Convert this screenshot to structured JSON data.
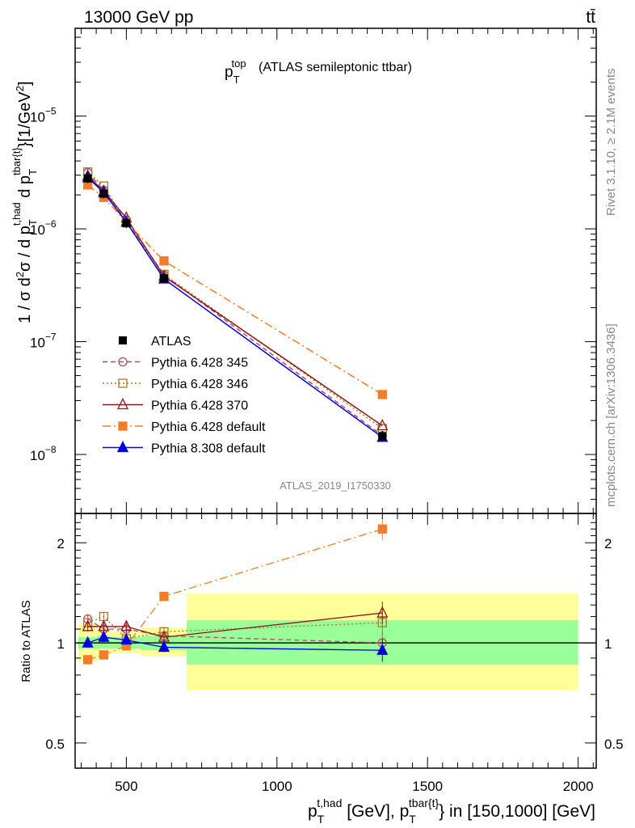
{
  "header": {
    "left": "13000 GeV pp",
    "right": "tt̄"
  },
  "side_text": {
    "top": "Rivet 3.1.10, ≥ 2.1M events",
    "bottom": "mcplots.cern.ch [arXiv:1306.3436]"
  },
  "chart_data": {
    "type": "line",
    "title": "(ATLAS semileptonic ttbar)",
    "title_symbol": {
      "base": "p",
      "sub": "T",
      "sup": "top"
    },
    "watermark": "ATLAS_2019_I1750330",
    "upper": {
      "ylabel": "1 / σ d²σ / d p_T^{t,had} d p_T^{tbar{t}} [1/GeV²]",
      "yscale": "log",
      "ylim": [
        3e-09,
        6e-05
      ],
      "yticks": [
        {
          "value": 1e-08,
          "mant": "10",
          "exp": "−8"
        },
        {
          "value": 1e-07,
          "mant": "10",
          "exp": "−7"
        },
        {
          "value": 1e-06,
          "mant": "10",
          "exp": "−6"
        },
        {
          "value": 1e-05,
          "mant": "10",
          "exp": "−5"
        }
      ]
    },
    "lower": {
      "ylabel": "Ratio to ATLAS",
      "yscale": "log",
      "ylim": [
        0.42,
        2.45
      ],
      "yticks": [
        {
          "value": 0.5,
          "label": "0.5"
        },
        {
          "value": 1,
          "label": "1"
        },
        {
          "value": 2,
          "label": "2"
        }
      ],
      "bands": [
        {
          "x": [
            340,
            405
          ],
          "inner": [
            0.96,
            1.04
          ],
          "outer": [
            0.88,
            1.14
          ]
        },
        {
          "x": [
            405,
            445
          ],
          "inner": [
            0.96,
            1.05
          ],
          "outer": [
            0.9,
            1.11
          ]
        },
        {
          "x": [
            445,
            550
          ],
          "inner": [
            0.96,
            1.04
          ],
          "outer": [
            0.93,
            1.08
          ]
        },
        {
          "x": [
            550,
            700
          ],
          "inner": [
            0.95,
            1.05
          ],
          "outer": [
            0.91,
            1.11
          ]
        },
        {
          "x": [
            700,
            2000
          ],
          "inner": [
            0.86,
            1.17
          ],
          "outer": [
            0.72,
            1.41
          ]
        }
      ]
    },
    "xlim": [
      330,
      2060
    ],
    "xlabel": "p_T^{t,had} [GeV], p_T^{tbar{t}} in [150,1000] [GeV]",
    "xticks": [
      {
        "value": 500,
        "label": "500"
      },
      {
        "value": 1000,
        "label": "1000"
      },
      {
        "value": 1500,
        "label": "1500"
      },
      {
        "value": 2000,
        "label": "2000"
      }
    ],
    "x": [
      372,
      425,
      500,
      625,
      1350
    ],
    "reference": {
      "name": "ATLAS",
      "values": [
        2.8e-06,
        2.05e-06,
        1.12e-06,
        3.65e-07,
        1.45e-08
      ]
    },
    "series": [
      {
        "name": "Pythia 6.428 345",
        "color": "#b44b5a",
        "dash": "6,4",
        "marker": "circle-open",
        "values": [
          3.15e-06,
          2.2e-06,
          1.2e-06,
          3.9e-07,
          1.47e-08
        ],
        "ratio": [
          1.18,
          1.1,
          1.1,
          1.05,
          1.0
        ]
      },
      {
        "name": "Pythia 6.428 346",
        "color": "#a8782d",
        "dash": "2,3",
        "marker": "square-open",
        "values": [
          3.2e-06,
          2.4e-06,
          1.15e-06,
          3.95e-07,
          1.7e-08
        ],
        "ratio": [
          1.15,
          1.2,
          1.03,
          1.08,
          1.15
        ]
      },
      {
        "name": "Pythia 6.428 370",
        "color": "#8b1a1a",
        "dash": "",
        "marker": "triangle-open",
        "values": [
          2.95e-06,
          2.15e-06,
          1.25e-06,
          3.8e-07,
          1.8e-08
        ],
        "ratio": [
          1.12,
          1.12,
          1.12,
          1.04,
          1.23
        ]
      },
      {
        "name": "Pythia 6.428 default",
        "color": "#f47b2a",
        "dash": "10,4,2,4",
        "marker": "square-filled",
        "values": [
          2.45e-06,
          1.9e-06,
          1.15e-06,
          5.2e-07,
          3.4e-08
        ],
        "ratio": [
          0.89,
          0.92,
          0.98,
          1.38,
          2.2
        ]
      },
      {
        "name": "Pythia 8.308 default",
        "color": "#0000dd",
        "dash": "",
        "marker": "triangle-filled",
        "values": [
          2.85e-06,
          2.1e-06,
          1.15e-06,
          3.6e-07,
          1.42e-08
        ],
        "ratio": [
          1.0,
          1.04,
          1.02,
          0.97,
          0.95
        ]
      }
    ]
  }
}
